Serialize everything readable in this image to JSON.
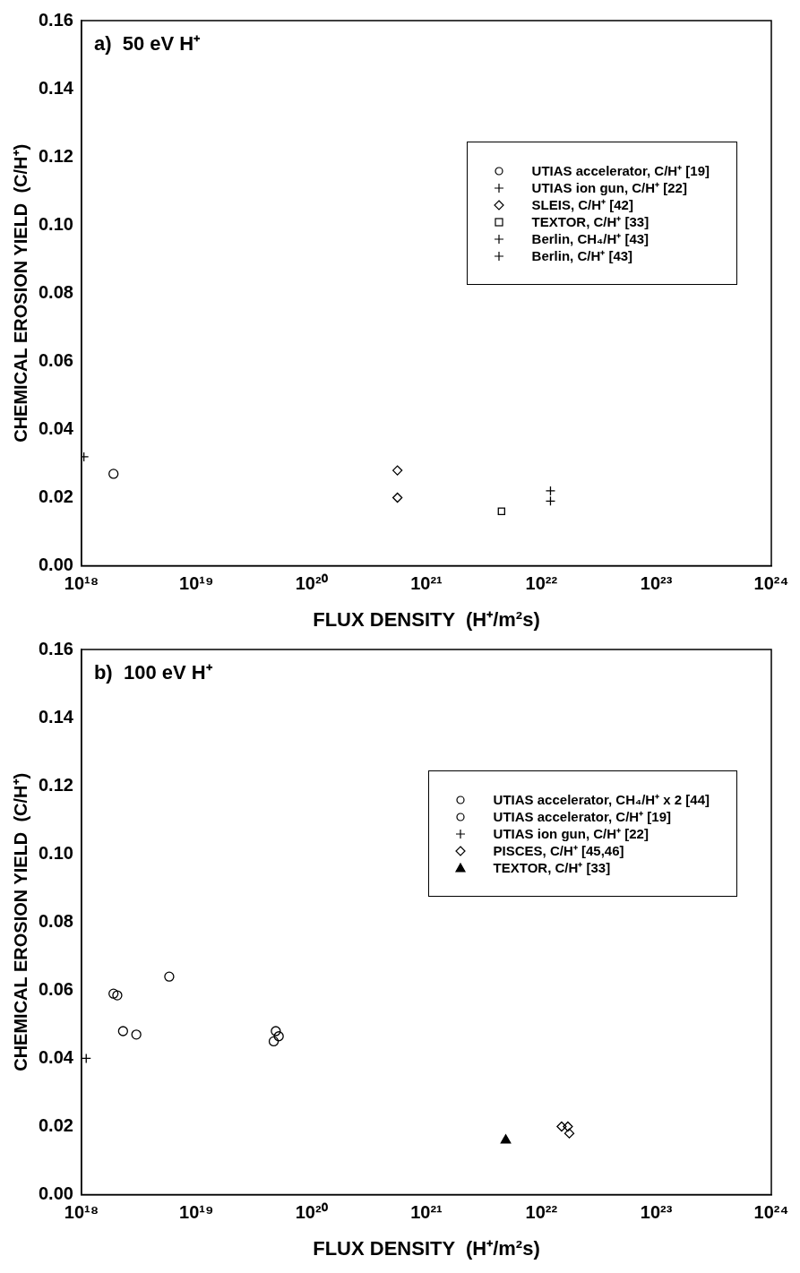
{
  "chart_data": [
    {
      "type": "scatter",
      "title": "a)  50 eV H⁺",
      "xlabel": "FLUX DENSITY  (H⁺/m²s)",
      "ylabel": "CHEMICAL EROSION YIELD  (C/H⁺)",
      "log": "x",
      "xlim": [
        1e+18,
        1e+24
      ],
      "ylim": [
        0,
        0.16
      ],
      "xticks": [
        {
          "value": 1e+18,
          "label": "10¹⁸"
        },
        {
          "value": 1e+19,
          "label": "10¹⁹"
        },
        {
          "value": 1e+20,
          "label": "10²⁰"
        },
        {
          "value": 1e+21,
          "label": "10²¹"
        },
        {
          "value": 1e+22,
          "label": "10²²"
        },
        {
          "value": 1e+23,
          "label": "10²³"
        },
        {
          "value": 1e+24,
          "label": "10²⁴"
        }
      ],
      "yticks": [
        {
          "value": 0,
          "label": "0.00"
        },
        {
          "value": 0.02,
          "label": "0.02"
        },
        {
          "value": 0.04,
          "label": "0.04"
        },
        {
          "value": 0.06,
          "label": "0.06"
        },
        {
          "value": 0.08,
          "label": "0.08"
        },
        {
          "value": 0.1,
          "label": "0.10"
        },
        {
          "value": 0.12,
          "label": "0.12"
        },
        {
          "value": 0.14,
          "label": "0.14"
        },
        {
          "value": 0.16,
          "label": "0.16"
        }
      ],
      "grid": false,
      "legend": "right",
      "series": [
        {
          "name": "UTIAS accelerator, C/H⁺ [19]",
          "color": "#000000",
          "marker": "circle",
          "x": [
            1.9e+18
          ],
          "values": [
            0.027
          ]
        },
        {
          "name": "UTIAS ion gun, C/H⁺ [22]",
          "color": "#000000",
          "marker": "cross",
          "x": [
            1.05e+18
          ],
          "values": [
            0.032
          ]
        },
        {
          "name": "SLEIS, C/H⁺ [42]",
          "color": "#000000",
          "marker": "diamond",
          "x": [
            5.6e+20,
            5.6e+20
          ],
          "values": [
            0.028,
            0.02
          ]
        },
        {
          "name": "TEXTOR, C/H⁺ [33]",
          "color": "#000000",
          "marker": "square",
          "x": [
            4.5e+21
          ],
          "values": [
            0.016
          ]
        },
        {
          "name": "Berlin, CH₄/H⁺ [43]",
          "color": "#000000",
          "marker": "cross",
          "x": [
            1.2e+22
          ],
          "values": [
            0.022
          ]
        },
        {
          "name": "Berlin, C/H⁺ [43]",
          "color": "#000000",
          "marker": "cross",
          "x": [
            1.2e+22
          ],
          "values": [
            0.019
          ]
        }
      ]
    },
    {
      "type": "scatter",
      "title": "b)  100 eV H⁺",
      "xlabel": "FLUX DENSITY  (H⁺/m²s)",
      "ylabel": "CHEMICAL EROSION YIELD  (C/H⁺)",
      "log": "x",
      "xlim": [
        1e+18,
        1e+24
      ],
      "ylim": [
        0,
        0.16
      ],
      "xticks": [
        {
          "value": 1e+18,
          "label": "10¹⁸"
        },
        {
          "value": 1e+19,
          "label": "10¹⁹"
        },
        {
          "value": 1e+20,
          "label": "10²⁰"
        },
        {
          "value": 1e+21,
          "label": "10²¹"
        },
        {
          "value": 1e+22,
          "label": "10²²"
        },
        {
          "value": 1e+23,
          "label": "10²³"
        },
        {
          "value": 1e+24,
          "label": "10²⁴"
        }
      ],
      "yticks": [
        {
          "value": 0,
          "label": "0.00"
        },
        {
          "value": 0.02,
          "label": "0.02"
        },
        {
          "value": 0.04,
          "label": "0.04"
        },
        {
          "value": 0.06,
          "label": "0.06"
        },
        {
          "value": 0.08,
          "label": "0.08"
        },
        {
          "value": 0.1,
          "label": "0.10"
        },
        {
          "value": 0.12,
          "label": "0.12"
        },
        {
          "value": 0.14,
          "label": "0.14"
        },
        {
          "value": 0.16,
          "label": "0.16"
        }
      ],
      "grid": false,
      "legend": "right",
      "series": [
        {
          "name": "UTIAS accelerator, CH₄/H⁺ x 2 [44]",
          "color": "#000000",
          "marker": "circle",
          "x": [
            5.8e+18,
            4.7e+19,
            4.9e+19,
            5.2e+19
          ],
          "values": [
            0.064,
            0.045,
            0.048,
            0.0465
          ]
        },
        {
          "name": "UTIAS accelerator, C/H⁺ [19]",
          "color": "#000000",
          "marker": "circle",
          "x": [
            1.9e+18,
            2.05e+18,
            2.3e+18,
            3e+18
          ],
          "values": [
            0.059,
            0.0585,
            0.048,
            0.047
          ]
        },
        {
          "name": "UTIAS ion gun, C/H⁺ [22]",
          "color": "#000000",
          "marker": "cross",
          "x": [
            1.1e+18
          ],
          "values": [
            0.04
          ]
        },
        {
          "name": "PISCES, C/H⁺ [45,46]",
          "color": "#000000",
          "marker": "diamond",
          "x": [
            1.5e+22,
            1.7e+22,
            1.75e+22
          ],
          "values": [
            0.02,
            0.02,
            0.018
          ]
        },
        {
          "name": "TEXTOR, C/H⁺ [33]",
          "color": "#000000",
          "marker": "triangle",
          "x": [
            4.9e+21
          ],
          "values": [
            0.016
          ]
        }
      ]
    }
  ]
}
